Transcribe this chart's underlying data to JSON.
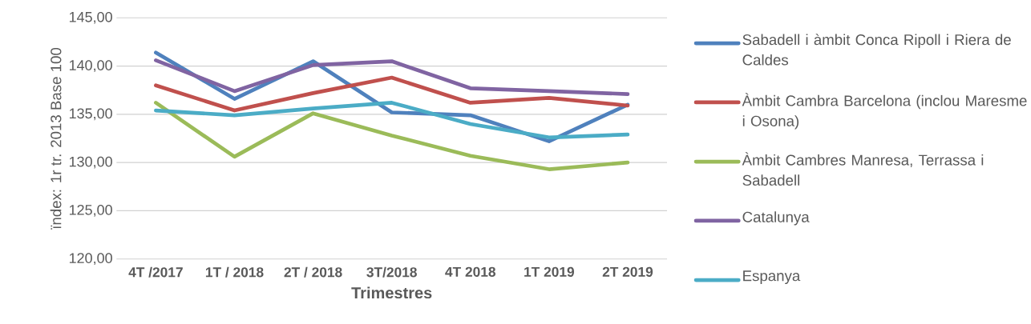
{
  "chart_data": {
    "type": "line",
    "xlabel": "Trimestres",
    "ylabel": "ïndex: 1r tr. 2013 Base 100",
    "categories": [
      "4T /2017",
      "1T / 2018",
      "2T / 2018",
      "3T/2018",
      "4T 2018",
      "1T 2019",
      "2T 2019"
    ],
    "series": [
      {
        "name": "Sabadell i àmbit Conca Ripoll i Riera de Caldes",
        "color": "#4f81bd",
        "values": [
          141.4,
          136.6,
          140.5,
          135.2,
          134.9,
          132.2,
          136.0
        ]
      },
      {
        "name": "Àmbit Cambra Barcelona (inclou Maresme i Osona)",
        "color": "#c0504d",
        "values": [
          138.0,
          135.4,
          137.2,
          138.8,
          136.2,
          136.7,
          135.9
        ]
      },
      {
        "name": "Àmbit Cambres Manresa, Terrassa i Sabadell",
        "color": "#9bbb59",
        "values": [
          136.2,
          130.6,
          135.1,
          132.8,
          130.7,
          129.3,
          130.0
        ]
      },
      {
        "name": "Catalunya",
        "color": "#8064a2",
        "values": [
          140.6,
          137.4,
          140.1,
          140.5,
          137.7,
          137.4,
          137.1
        ]
      },
      {
        "name": "Espanya",
        "color": "#4bacc6",
        "values": [
          135.4,
          134.9,
          135.6,
          136.2,
          134.0,
          132.6,
          132.9
        ]
      }
    ],
    "ylim": [
      120,
      145
    ],
    "yticks": [
      {
        "value": 120,
        "label": "120,00"
      },
      {
        "value": 125,
        "label": "125,00"
      },
      {
        "value": 130,
        "label": "130,00"
      },
      {
        "value": 135,
        "label": "135,00"
      },
      {
        "value": 140,
        "label": "140,00"
      },
      {
        "value": 145,
        "label": "145,00"
      }
    ],
    "grid": "y",
    "legend": "right",
    "marker": "none",
    "line_style": "solid"
  }
}
